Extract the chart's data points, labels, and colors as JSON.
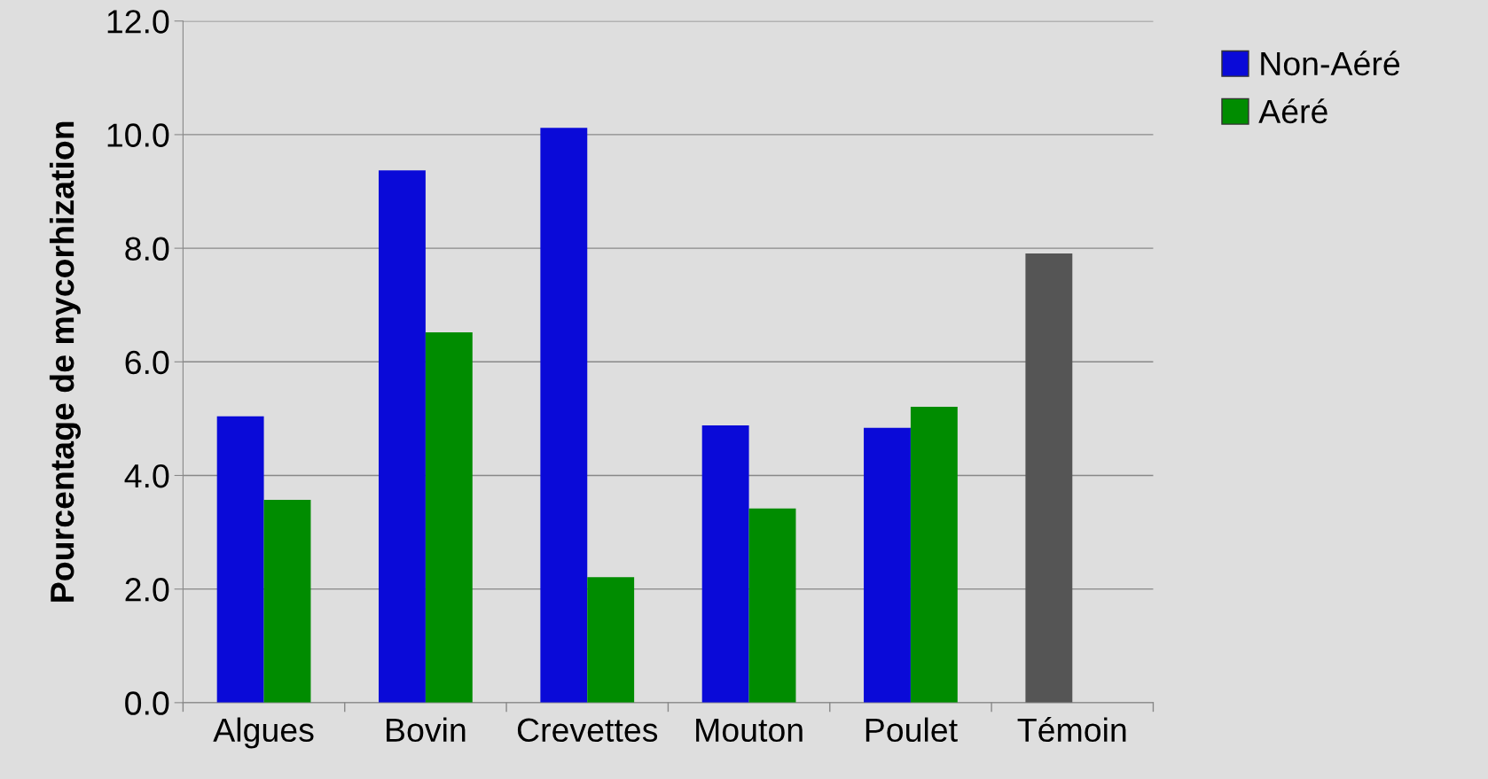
{
  "chart_data": {
    "type": "bar",
    "ylabel": "Pourcentage de mycorhization",
    "categories": [
      "Algues",
      "Bovin",
      "Crevettes",
      "Mouton",
      "Poulet",
      "Témoin"
    ],
    "series": [
      {
        "name": "Non-Aéré",
        "color": "#0a0ad8",
        "colors": [
          "#0a0ad8",
          "#0a0ad8",
          "#0a0ad8",
          "#0a0ad8",
          "#0a0ad8",
          "#555555"
        ],
        "values": [
          5.04,
          9.37,
          10.12,
          4.88,
          4.84,
          7.91
        ]
      },
      {
        "name": "Aéré",
        "color": "#008c00",
        "values": [
          3.57,
          6.52,
          2.21,
          3.42,
          5.21,
          null
        ]
      }
    ],
    "ylim": [
      0,
      12
    ],
    "yticks": [
      {
        "value": 0,
        "label": "0.0"
      },
      {
        "value": 2,
        "label": "2.0"
      },
      {
        "value": 4,
        "label": "4.0"
      },
      {
        "value": 6,
        "label": "6.0"
      },
      {
        "value": 8,
        "label": "8.0"
      },
      {
        "value": 10,
        "label": "10.0"
      },
      {
        "value": 12,
        "label": "12.0"
      }
    ],
    "grid": "y",
    "legend": "top right"
  }
}
